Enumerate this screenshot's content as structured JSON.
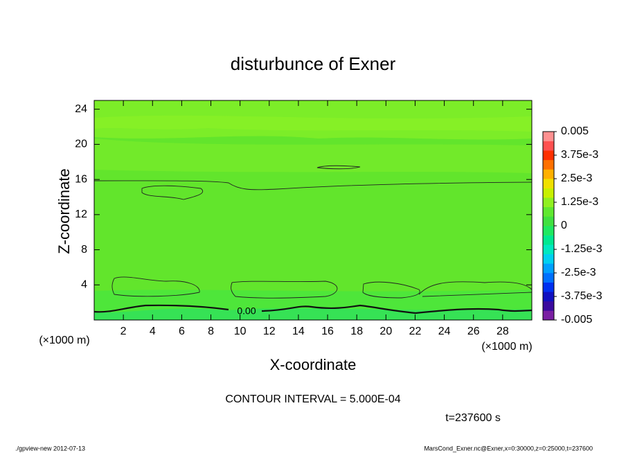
{
  "chart_data": {
    "type": "contour",
    "title": "disturbunce of Exner",
    "x_label": "X-coordinate",
    "y_label": "Z-coordinate",
    "x_unit_label": "(×1000 m)",
    "y_unit_label": "(×1000 m)",
    "xlim": [
      0,
      30
    ],
    "ylim": [
      0,
      25
    ],
    "xticks": [
      2,
      4,
      6,
      8,
      10,
      12,
      14,
      16,
      18,
      20,
      22,
      24,
      26,
      28
    ],
    "yticks": [
      4,
      8,
      12,
      16,
      20,
      24
    ],
    "contour_labels": [
      "0.00"
    ],
    "contour_interval": "CONTOUR INTERVAL = 5.000E-04",
    "time": "t=237600 s",
    "colorbar": {
      "lim": [
        -0.005,
        0.005
      ],
      "ticks": [
        0.005,
        {
          "value": 0.00375,
          "label": "3.75e-3"
        },
        {
          "value": 0.0025,
          "label": "2.5e-3"
        },
        {
          "value": 0.00125,
          "label": "1.25e-3"
        },
        0,
        {
          "value": -0.00125,
          "label": "-1.25e-3"
        },
        {
          "value": -0.0025,
          "label": "-2.5e-3"
        },
        {
          "value": -0.00375,
          "label": "-3.75e-3"
        },
        -0.005
      ],
      "colors": [
        "#7a1fa2",
        "#3a0a9e",
        "#1010c0",
        "#0030f0",
        "#0070ff",
        "#00a0ff",
        "#00d0f0",
        "#00e8c0",
        "#00e890",
        "#20e860",
        "#40e040",
        "#60e830",
        "#90f020",
        "#c8f000",
        "#f0e000",
        "#ffb000",
        "#ff7000",
        "#ff3000",
        "#ff5050",
        "#ff9090"
      ]
    }
  },
  "footer": {
    "left": "./gpview-new  2012-07-13",
    "right": "MarsCond_Exner.nc@Exner,x=0:30000,z=0:25000,t=237600"
  }
}
